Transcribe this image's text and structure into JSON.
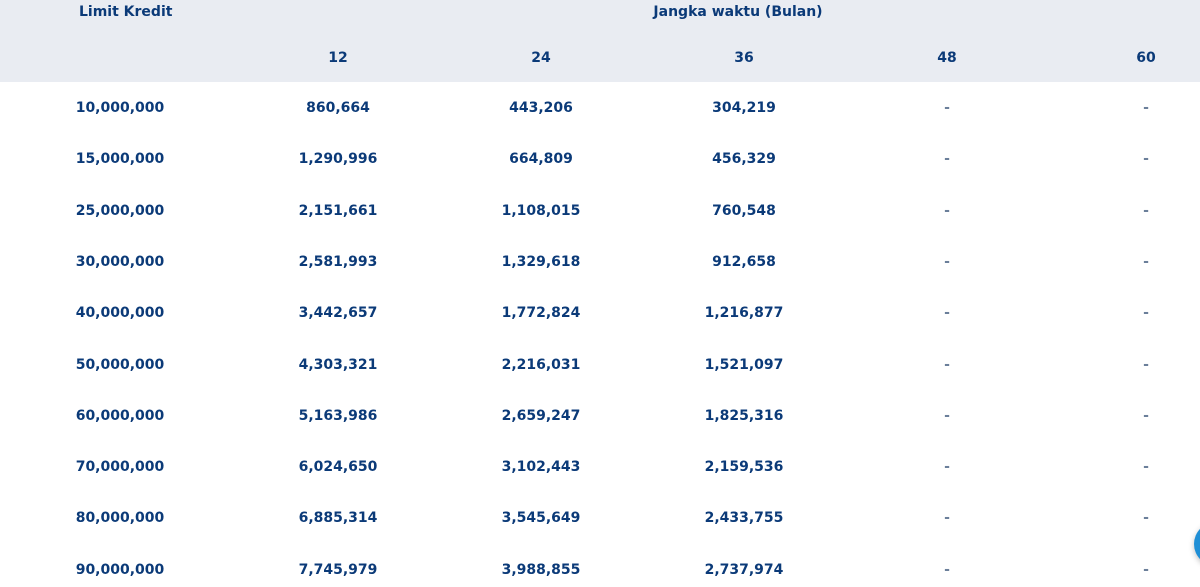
{
  "header": {
    "limit_label": "Limit Kredit",
    "term_group_label": "Jangka waktu (Bulan)",
    "terms": [
      "12",
      "24",
      "36",
      "48",
      "60"
    ]
  },
  "rows": [
    {
      "limit": "10,000,000",
      "v12": "860,664",
      "v24": "443,206",
      "v36": "304,219",
      "v48": "-",
      "v60": "-"
    },
    {
      "limit": "15,000,000",
      "v12": "1,290,996",
      "v24": "664,809",
      "v36": "456,329",
      "v48": "-",
      "v60": "-"
    },
    {
      "limit": "25,000,000",
      "v12": "2,151,661",
      "v24": "1,108,015",
      "v36": "760,548",
      "v48": "-",
      "v60": "-"
    },
    {
      "limit": "30,000,000",
      "v12": "2,581,993",
      "v24": "1,329,618",
      "v36": "912,658",
      "v48": "-",
      "v60": "-"
    },
    {
      "limit": "40,000,000",
      "v12": "3,442,657",
      "v24": "1,772,824",
      "v36": "1,216,877",
      "v48": "-",
      "v60": "-"
    },
    {
      "limit": "50,000,000",
      "v12": "4,303,321",
      "v24": "2,216,031",
      "v36": "1,521,097",
      "v48": "-",
      "v60": "-"
    },
    {
      "limit": "60,000,000",
      "v12": "5,163,986",
      "v24": "2,659,247",
      "v36": "1,825,316",
      "v48": "-",
      "v60": "-"
    },
    {
      "limit": "70,000,000",
      "v12": "6,024,650",
      "v24": "3,102,443",
      "v36": "2,159,536",
      "v48": "-",
      "v60": "-"
    },
    {
      "limit": "80,000,000",
      "v12": "6,885,314",
      "v24": "3,545,649",
      "v36": "2,433,755",
      "v48": "-",
      "v60": "-"
    },
    {
      "limit": "90,000,000",
      "v12": "7,745,979",
      "v24": "3,988,855",
      "v36": "2,737,974",
      "v48": "-",
      "v60": "-"
    }
  ]
}
